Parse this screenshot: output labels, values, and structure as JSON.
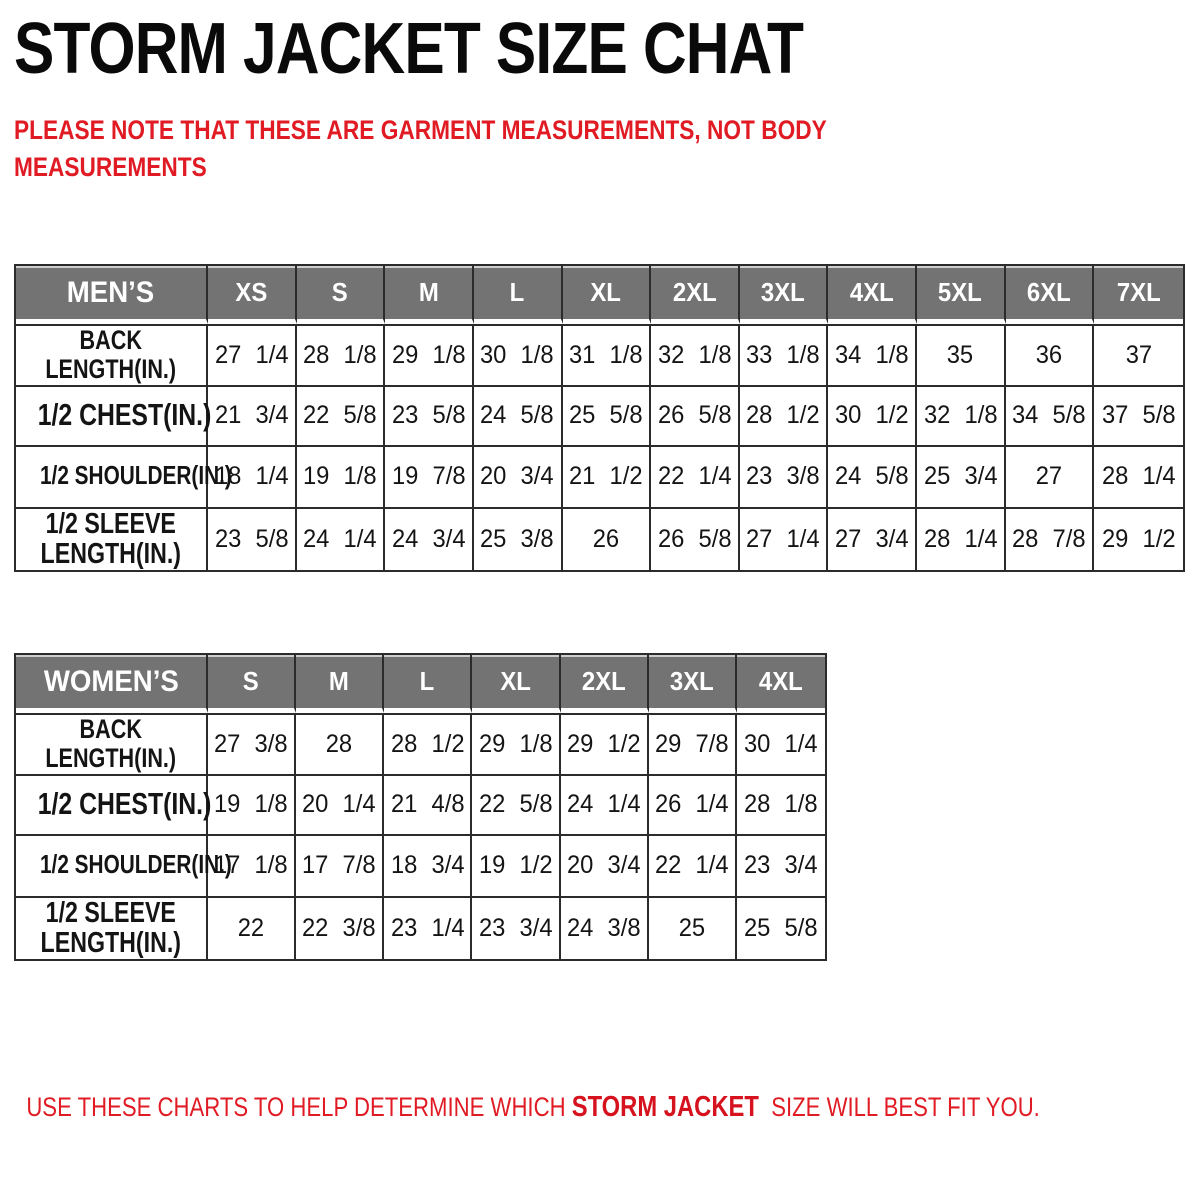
{
  "page": {
    "title": "STORM JACKET SIZE CHAT",
    "note_lines": [
      "PLEASE NOTE THAT THESE ARE GARMENT MEASUREMENTS, NOT BODY",
      "MEASUREMENTS"
    ],
    "footer": {
      "prefix": "USE THESE CHARTS TO HELP DETERMINE WHICH ",
      "highlight": "STORM JACKET",
      "suffix": "  SIZE WILL BEST FIT YOU."
    }
  },
  "colors": {
    "accent_red": "#e01b24",
    "header_gray": "#737373",
    "border_dark": "#2b2b2b",
    "text_black": "#0a0a0a"
  },
  "chart_data": [
    {
      "type": "table",
      "title": "MEN’S",
      "columns": [
        "XS",
        "S",
        "M",
        "L",
        "XL",
        "2XL",
        "3XL",
        "4XL",
        "5XL",
        "6XL",
        "7XL"
      ],
      "rows": [
        {
          "label": "BACK LENGTH(IN.)",
          "label_lines": [
            "BACK",
            "LENGTH(IN.)"
          ],
          "values": [
            "27 1/4",
            "28 1/8",
            "29 1/8",
            "30 1/8",
            "31 1/8",
            "32 1/8",
            "33 1/8",
            "34 1/8",
            "35",
            "36",
            "37"
          ]
        },
        {
          "label": "1/2 CHEST(IN.)",
          "label_lines": [
            "1/2 CHEST(IN.)"
          ],
          "values": [
            "21 3/4",
            "22 5/8",
            "23 5/8",
            "24 5/8",
            "25 5/8",
            "26 5/8",
            "28 1/2",
            "30 1/2",
            "32 1/8",
            "34 5/8",
            "37 5/8"
          ]
        },
        {
          "label": "1/2 SHOULDER(IN.)",
          "label_lines": [
            "1/2 SHOULDER(IN.)"
          ],
          "values": [
            "18 1/4",
            "19 1/8",
            "19 7/8",
            "20 3/4",
            "21 1/2",
            "22 1/4",
            "23 3/8",
            "24 5/8",
            "25 3/4",
            "27",
            "28 1/4"
          ]
        },
        {
          "label": "1/2 SLEEVE LENGTH(IN.)",
          "label_lines": [
            "1/2 SLEEVE",
            "LENGTH(IN.)"
          ],
          "values": [
            "23 5/8",
            "24 1/4",
            "24 3/4",
            "25 3/8",
            "26",
            "26 5/8",
            "27 1/4",
            "27 3/4",
            "28 1/4",
            "28 7/8",
            "29 1/2"
          ]
        }
      ]
    },
    {
      "type": "table",
      "title": "WOMEN’S",
      "columns": [
        "S",
        "M",
        "L",
        "XL",
        "2XL",
        "3XL",
        "4XL"
      ],
      "rows": [
        {
          "label": "BACK LENGTH(IN.)",
          "label_lines": [
            "BACK",
            "LENGTH(IN.)"
          ],
          "values": [
            "27 3/8",
            "28",
            "28 1/2",
            "29 1/8",
            "29 1/2",
            "29 7/8",
            "30 1/4"
          ]
        },
        {
          "label": "1/2 CHEST(IN.)",
          "label_lines": [
            "1/2 CHEST(IN.)"
          ],
          "values": [
            "19 1/8",
            "20 1/4",
            "21 4/8",
            "22 5/8",
            "24 1/4",
            "26 1/4",
            "28 1/8"
          ]
        },
        {
          "label": "1/2 SHOULDER(IN.)",
          "label_lines": [
            "1/2 SHOULDER(IN.)"
          ],
          "values": [
            "17 1/8",
            "17 7/8",
            "18 3/4",
            "19 1/2",
            "20 3/4",
            "22 1/4",
            "23 3/4"
          ]
        },
        {
          "label": "1/2 SLEEVE LENGTH(IN.)",
          "label_lines": [
            "1/2 SLEEVE",
            "LENGTH(IN.)"
          ],
          "values": [
            "22",
            "22 3/8",
            "23 1/4",
            "23 3/4",
            "24 3/8",
            "25",
            "25 5/8"
          ]
        }
      ]
    }
  ]
}
